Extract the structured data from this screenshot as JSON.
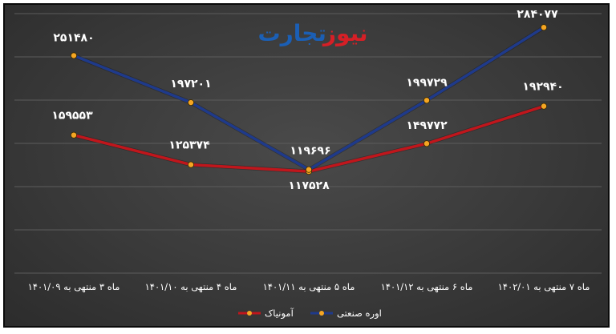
{
  "logo": {
    "part1": "تجارت",
    "part2": "نیوز"
  },
  "chart_data": {
    "type": "line",
    "categories": [
      "ماه ۳ منتهی به ۱۴۰۱/۰۹",
      "ماه ۴ منتهی به ۱۴۰۱/۱۰",
      "ماه ۵ منتهی به ۱۴۰۱/۱۱",
      "ماه ۶ منتهی به ۱۴۰۱/۱۲",
      "ماه ۷ منتهی به ۱۴۰۲/۰۱"
    ],
    "series": [
      {
        "name": "اوره صنعتی",
        "color": "#1f3a8a",
        "values": [
          251480,
          197201,
          119696,
          199729,
          284077
        ],
        "labels": [
          "۲۵۱۴۸۰",
          "۱۹۷۲۰۱",
          "۱۱۹۶۹۶",
          "۱۹۹۷۲۹",
          "۲۸۴۰۷۷"
        ]
      },
      {
        "name": "آمونیاک",
        "color": "#c0161c",
        "values": [
          159553,
          125374,
          117528,
          149772,
          192940
        ],
        "labels": [
          "۱۵۹۵۵۳",
          "۱۲۵۳۷۴",
          "۱۱۷۵۲۸",
          "۱۴۹۷۷۲",
          "۱۹۲۹۴۰"
        ]
      }
    ],
    "marker_color": "#f5a623",
    "ylim": [
      0,
      300000
    ],
    "grid": true,
    "legend_position": "bottom"
  }
}
